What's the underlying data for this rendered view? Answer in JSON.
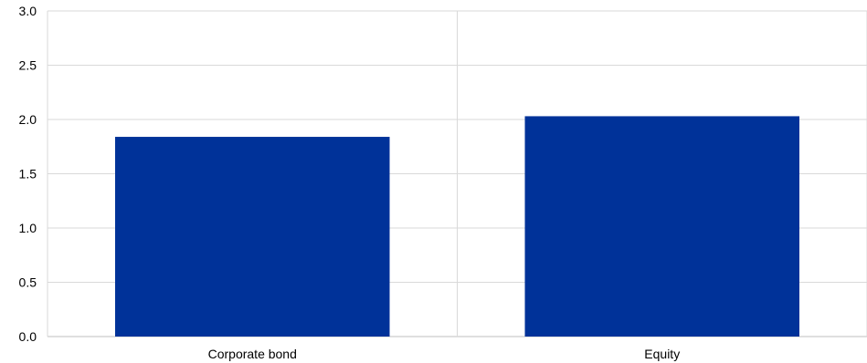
{
  "chart_data": {
    "type": "bar",
    "categories": [
      "Corporate bond",
      "Equity"
    ],
    "values": [
      1.84,
      2.03
    ],
    "ylim": [
      0,
      3
    ],
    "yticks": [
      "0.0",
      "0.5",
      "1.0",
      "1.5",
      "2.0",
      "2.5",
      "3.0"
    ],
    "title": "",
    "xlabel": "",
    "ylabel": "",
    "grid": true,
    "colors": {
      "bar": "#003299",
      "grid": "#d9d9d9",
      "axis": "#bfbfbf"
    }
  }
}
